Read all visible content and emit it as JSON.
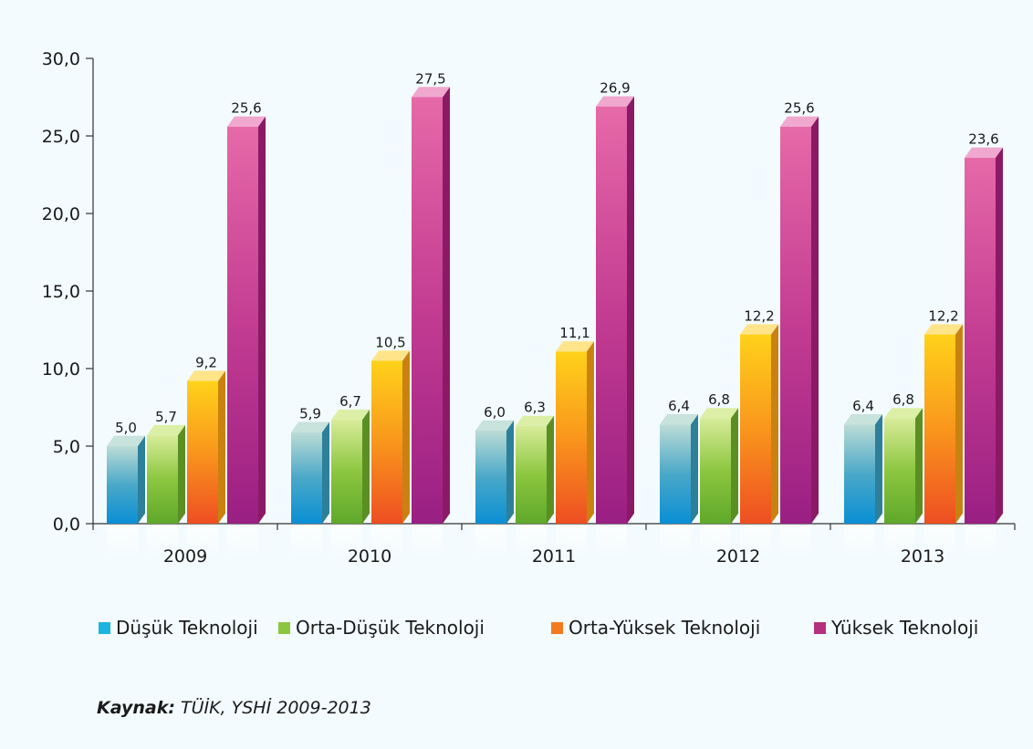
{
  "chart_data": {
    "type": "bar",
    "categories": [
      "2009",
      "2010",
      "2011",
      "2012",
      "2013"
    ],
    "series": [
      {
        "name": "Düşük Teknoloji",
        "values": [
          5.0,
          5.9,
          6.0,
          6.4,
          6.4
        ],
        "color": "#1eb4e0"
      },
      {
        "name": "Orta-Düşük Teknoloji",
        "values": [
          5.7,
          6.7,
          6.3,
          6.8,
          6.8
        ],
        "color": "#8cc63f"
      },
      {
        "name": "Orta-Yüksek Teknoloji",
        "values": [
          9.2,
          10.5,
          11.1,
          12.2,
          12.2
        ],
        "color": "#f47a20"
      },
      {
        "name": "Yüksek Teknoloji",
        "values": [
          25.6,
          27.5,
          26.9,
          25.6,
          23.6
        ],
        "color": "#b5317f"
      }
    ],
    "data_labels": [
      [
        "5,0",
        "5,9",
        "6,0",
        "6,4",
        "6,4"
      ],
      [
        "5,7",
        "6,7",
        "6,3",
        "6,8",
        "6,8"
      ],
      [
        "9,2",
        "10,5",
        "11,1",
        "12,2",
        "12,2"
      ],
      [
        "25,6",
        "27,5",
        "26,9",
        "25,6",
        "23,6"
      ]
    ],
    "yticks": [
      0,
      5,
      10,
      15,
      20,
      25,
      30
    ],
    "ytick_labels": [
      "0,0",
      "5,0",
      "10,0",
      "15,0",
      "20,0",
      "25,0",
      "30,0"
    ],
    "ylim": [
      0,
      30
    ],
    "title": "",
    "xlabel": "",
    "ylabel": "",
    "grid": false,
    "legend_position": "bottom"
  },
  "source": {
    "label": "Kaynak:",
    "text": " TÜİK, YSHİ 2009-2013"
  }
}
